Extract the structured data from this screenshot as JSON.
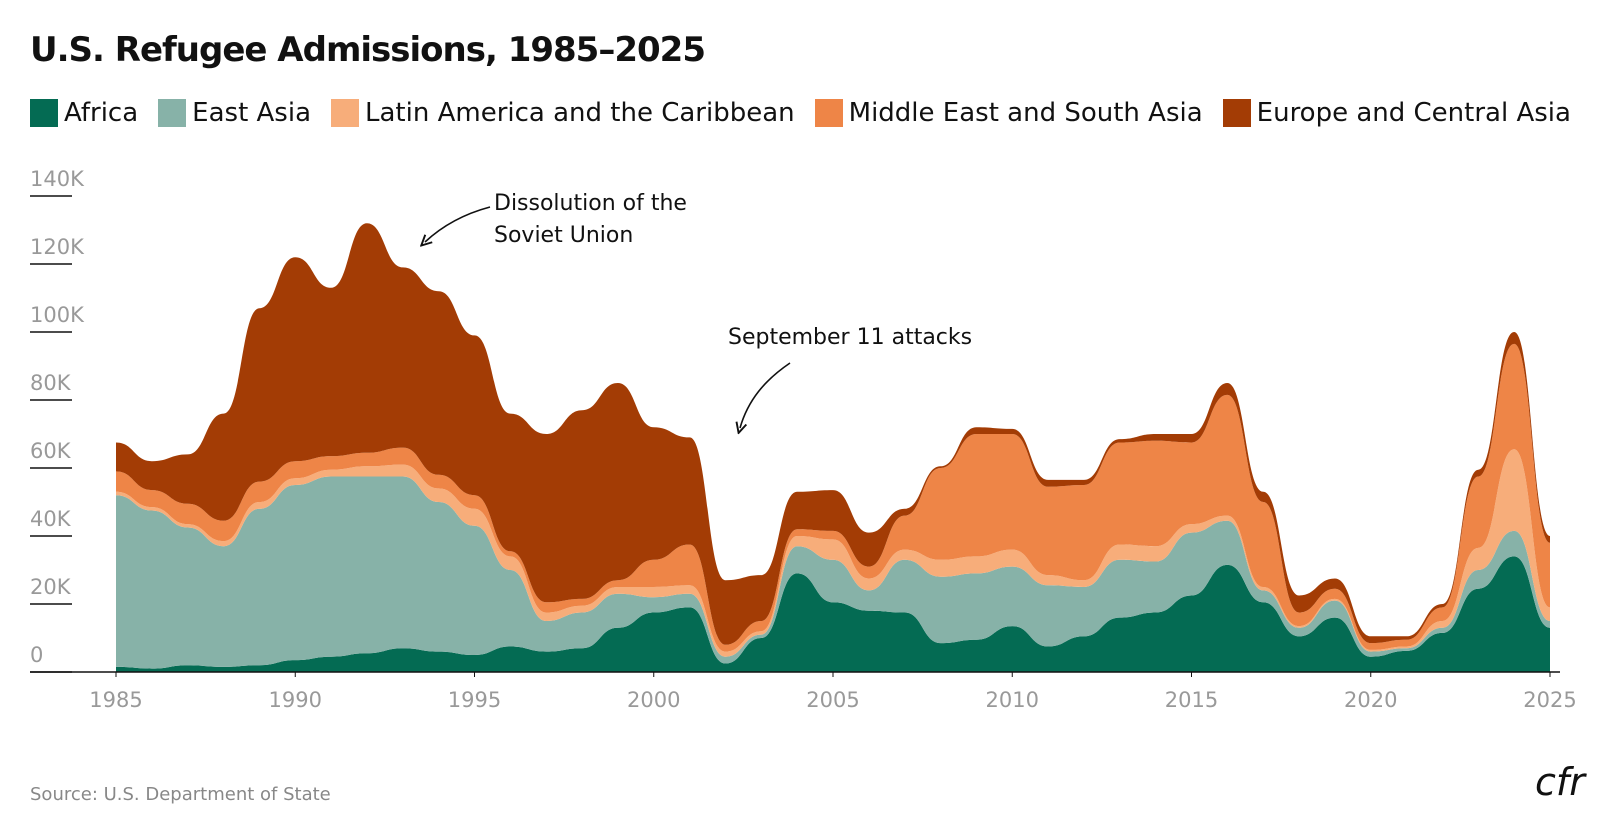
{
  "chart_data": {
    "type": "stacked-area",
    "title": "U.S. Refugee Admissions, 1985–2025",
    "source": "Source: U.S. Department of State",
    "logo": "cfr",
    "annotations": [
      "Dissolution of the\nSoviet Union",
      "September 11 attacks"
    ],
    "x": [
      1985,
      1986,
      1987,
      1988,
      1989,
      1990,
      1991,
      1992,
      1993,
      1994,
      1995,
      1996,
      1997,
      1998,
      1999,
      2000,
      2001,
      2002,
      2003,
      2004,
      2005,
      2006,
      2007,
      2008,
      2009,
      2010,
      2011,
      2012,
      2013,
      2014,
      2015,
      2016,
      2017,
      2018,
      2019,
      2020,
      2021,
      2022,
      2023,
      2024,
      2025
    ],
    "xlim": [
      1985,
      2025
    ],
    "xticks": [
      1985,
      1990,
      1995,
      2000,
      2005,
      2010,
      2015,
      2020,
      2025
    ],
    "ylim": [
      0,
      140000
    ],
    "yticks": [
      {
        "value": 0,
        "label": "0"
      },
      {
        "value": 20000,
        "label": "20K"
      },
      {
        "value": 40000,
        "label": "40K"
      },
      {
        "value": 60000,
        "label": "60K"
      },
      {
        "value": 80000,
        "label": "80K"
      },
      {
        "value": 100000,
        "label": "100K"
      },
      {
        "value": 120000,
        "label": "120K"
      },
      {
        "value": 140000,
        "label": "140K"
      }
    ],
    "series": [
      {
        "name": "Africa",
        "color": "#046b53",
        "values": [
          1500,
          1000,
          2000,
          1500,
          2000,
          3500,
          4500,
          5500,
          7000,
          6000,
          5000,
          7500,
          6000,
          7000,
          13000,
          17500,
          19000,
          2500,
          10000,
          29000,
          20500,
          18000,
          17500,
          8500,
          9500,
          13500,
          7500,
          10500,
          16000,
          17500,
          22500,
          31500,
          20500,
          10500,
          16000,
          4500,
          6200,
          11500,
          24500,
          34000,
          13000
        ]
      },
      {
        "name": "East Asia",
        "color": "#87b2a8",
        "values": [
          50500,
          46500,
          40500,
          35500,
          46000,
          51500,
          53000,
          52000,
          50500,
          44000,
          38000,
          22500,
          9000,
          10500,
          10000,
          4500,
          4000,
          2000,
          1000,
          8000,
          12500,
          6000,
          15500,
          19500,
          19500,
          17500,
          18000,
          14500,
          17000,
          15000,
          18500,
          13000,
          3500,
          2500,
          5000,
          1500,
          800,
          1500,
          5500,
          7500,
          2000
        ]
      },
      {
        "name": "Latin America and the Caribbean",
        "color": "#f7ad7a",
        "values": [
          1000,
          1000,
          1000,
          1500,
          2000,
          2000,
          2000,
          3000,
          3500,
          4000,
          5000,
          4000,
          2500,
          2000,
          2000,
          3000,
          2500,
          1500,
          1000,
          3000,
          6000,
          3500,
          3000,
          5000,
          5000,
          5000,
          3000,
          2000,
          4500,
          4500,
          2500,
          1500,
          1000,
          500,
          500,
          500,
          500,
          2000,
          6500,
          24000,
          4000
        ]
      },
      {
        "name": "Middle East and South Asia",
        "color": "#ee8547",
        "values": [
          6000,
          5000,
          6000,
          6000,
          6000,
          5000,
          4000,
          4000,
          5000,
          4000,
          4000,
          1500,
          3000,
          2000,
          2000,
          8000,
          12000,
          2000,
          3000,
          2000,
          2500,
          3500,
          10000,
          27000,
          36000,
          34000,
          26000,
          28000,
          30000,
          31000,
          24000,
          35500,
          25000,
          4000,
          3000,
          2000,
          2000,
          4000,
          21000,
          31000,
          19000
        ]
      },
      {
        "name": "Europe and Central Asia",
        "color": "#a33c05",
        "values": [
          8500,
          8500,
          14500,
          31500,
          51000,
          60000,
          49500,
          67500,
          53000,
          54000,
          47000,
          40500,
          49500,
          55500,
          58000,
          39000,
          31500,
          19000,
          13500,
          11000,
          12000,
          10000,
          2000,
          500,
          2000,
          1500,
          2000,
          1500,
          1000,
          2000,
          2500,
          3500,
          3000,
          5000,
          3000,
          2000,
          1000,
          1000,
          2000,
          3500,
          2000
        ]
      }
    ]
  }
}
